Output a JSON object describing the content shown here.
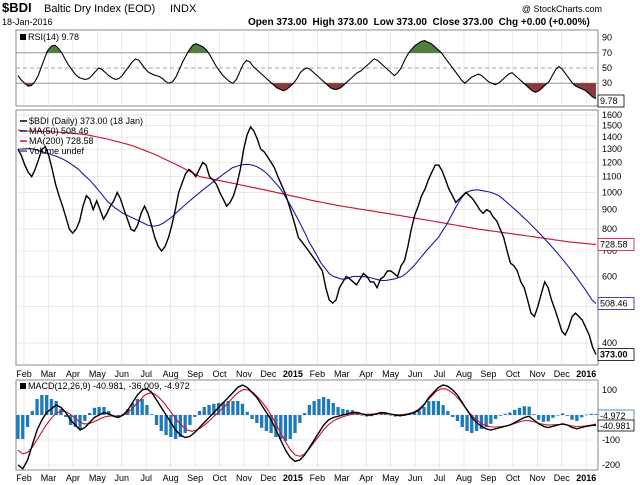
{
  "header": {
    "symbol": "$BDI",
    "name": "Baltic Dry Index (EOD)",
    "exchange": "INDX",
    "date": "18-Jan-2016",
    "ohlc_text": "Open 373.00  High 373.00  Low 373.00  Close 373.00  Chg +0.00 (+0.00%)",
    "watermark": "@ StockCharts.com"
  },
  "chart_data": [
    {
      "type": "line",
      "panel": "rsi",
      "legend": "RSI(14) 9.78",
      "series": [
        {
          "name": "RSI(14)",
          "values": [
            40,
            34,
            30,
            26,
            27,
            32,
            40,
            52,
            64,
            74,
            79,
            80,
            76,
            70,
            62,
            54,
            48,
            42,
            38,
            36,
            35,
            36,
            40,
            45,
            50,
            48,
            44,
            40,
            37,
            35,
            36,
            40,
            46,
            52,
            58,
            62,
            60,
            54,
            48,
            44,
            42,
            40,
            39,
            36,
            32,
            30,
            32,
            38,
            48,
            58,
            66,
            74,
            80,
            82,
            80,
            78,
            74,
            68,
            60,
            52,
            46,
            40,
            36,
            32,
            30,
            35,
            45,
            55,
            60,
            58,
            52,
            48,
            44,
            40,
            36,
            32,
            28,
            24,
            22,
            20,
            22,
            26,
            30,
            36,
            44,
            48,
            50,
            48,
            44,
            40,
            36,
            32,
            28,
            24,
            22,
            22,
            24,
            28,
            32,
            36,
            40,
            44,
            46,
            50,
            54,
            58,
            62,
            60,
            56,
            52,
            48,
            44,
            40,
            44,
            50,
            60,
            68,
            74,
            79,
            82,
            85,
            86,
            84,
            82,
            78,
            74,
            70,
            64,
            58,
            52,
            46,
            40,
            34,
            30,
            34,
            38,
            40,
            42,
            40,
            36,
            32,
            30,
            28,
            30,
            34,
            38,
            42,
            44,
            40,
            36,
            32,
            28,
            24,
            20,
            18,
            20,
            24,
            28,
            32,
            40,
            48,
            52,
            48,
            42,
            36,
            30,
            26,
            24,
            22,
            20,
            16,
            12,
            9.78
          ]
        }
      ],
      "ylim": [
        0,
        100
      ],
      "y_ticks": [
        30,
        50,
        70,
        90
      ],
      "reference_lines": [
        30,
        50,
        70
      ],
      "last_value": "9.78"
    },
    {
      "type": "line",
      "panel": "price",
      "legend": [
        {
          "text": "$BDI (Daily) 373.00 (18 Jan)",
          "color": "#000000"
        },
        {
          "text": "MA(50) 508.46",
          "color": "#1a1aa0"
        },
        {
          "text": "MA(200) 728.58",
          "color": "#c8102e"
        },
        {
          "text": "Volume undef",
          "color": "#555555"
        }
      ],
      "y_scale": "log",
      "ylim": [
        350,
        1650
      ],
      "y_ticks": [
        400,
        500,
        600,
        700,
        800,
        900,
        1000,
        1100,
        1200,
        1300,
        1400,
        1500,
        1600
      ],
      "series": [
        {
          "name": "$BDI",
          "values": [
            1300,
            1250,
            1180,
            1130,
            1100,
            1150,
            1220,
            1300,
            1320,
            1250,
            1150,
            1050,
            980,
            920,
            860,
            800,
            780,
            800,
            840,
            920,
            980,
            960,
            900,
            950,
            900,
            850,
            880,
            920,
            950,
            1000,
            960,
            900,
            850,
            800,
            790,
            820,
            880,
            920,
            880,
            820,
            760,
            720,
            700,
            720,
            760,
            820,
            900,
            1000,
            1060,
            1120,
            1150,
            1130,
            1100,
            1150,
            1200,
            1180,
            1100,
            1080,
            1050,
            1000,
            960,
            920,
            940,
            980,
            1050,
            1150,
            1300,
            1420,
            1490,
            1450,
            1380,
            1300,
            1280,
            1240,
            1200,
            1160,
            1100,
            1050,
            1000,
            940,
            880,
            820,
            760,
            740,
            720,
            700,
            680,
            660,
            640,
            620,
            560,
            520,
            510,
            520,
            560,
            580,
            600,
            590,
            580,
            570,
            590,
            610,
            600,
            580,
            580,
            560,
            590,
            600,
            620,
            620,
            610,
            600,
            640,
            660,
            720,
            800,
            870,
            920,
            980,
            1020,
            1080,
            1130,
            1180,
            1180,
            1140,
            1080,
            1020,
            980,
            940,
            960,
            980,
            1000,
            980,
            960,
            930,
            900,
            880,
            900,
            890,
            860,
            840,
            800,
            760,
            700,
            650,
            640,
            620,
            580,
            560,
            520,
            480,
            470,
            500,
            540,
            580,
            560,
            520,
            490,
            460,
            430,
            420,
            440,
            470,
            480,
            470,
            460,
            440,
            420,
            390,
            373
          ]
        },
        {
          "name": "MA(50)",
          "values": [
            1300,
            1302,
            1304,
            1305,
            1300,
            1290,
            1280,
            1270,
            1262,
            1250,
            1240,
            1225,
            1210,
            1190,
            1170,
            1150,
            1120,
            1095,
            1070,
            1040,
            1010,
            980,
            950,
            930,
            910,
            895,
            880,
            870,
            860,
            850,
            840,
            830,
            820,
            815,
            815,
            820,
            830,
            845,
            860,
            880,
            900,
            920,
            940,
            960,
            980,
            1000,
            1020,
            1040,
            1060,
            1080,
            1100,
            1120,
            1140,
            1160,
            1170,
            1180,
            1185,
            1185,
            1180,
            1170,
            1155,
            1135,
            1110,
            1080,
            1050,
            1020,
            980,
            940,
            900,
            860,
            820,
            780,
            740,
            710,
            680,
            650,
            630,
            610,
            600,
            595,
            590,
            590,
            595,
            600,
            600,
            600,
            598,
            596,
            592,
            588,
            585,
            585,
            588,
            590,
            595,
            600,
            610,
            625,
            640,
            660,
            680,
            700,
            720,
            740,
            760,
            790,
            820,
            860,
            900,
            940,
            975,
            1000,
            1010,
            1015,
            1015,
            1010,
            1005,
            1000,
            990,
            980,
            960,
            940,
            920,
            900,
            880,
            860,
            840,
            820,
            800,
            780,
            760,
            740,
            720,
            700,
            680,
            660,
            640,
            620,
            600,
            580,
            560,
            540,
            520,
            508.46
          ]
        },
        {
          "name": "MA(200)",
          "values": [
            1460,
            1455,
            1452,
            1450,
            1450,
            1450,
            1448,
            1446,
            1444,
            1442,
            1440,
            1436,
            1432,
            1428,
            1424,
            1420,
            1412,
            1404,
            1396,
            1388,
            1380,
            1370,
            1360,
            1350,
            1340,
            1330,
            1316,
            1302,
            1288,
            1274,
            1260,
            1244,
            1228,
            1212,
            1196,
            1180,
            1164,
            1148,
            1132,
            1116,
            1100,
            1094,
            1088,
            1082,
            1076,
            1070,
            1064,
            1058,
            1052,
            1046,
            1040,
            1034,
            1028,
            1022,
            1016,
            1010,
            1004,
            998,
            992,
            986,
            980,
            974,
            968,
            962,
            956,
            950,
            945,
            940,
            935,
            930,
            925,
            920,
            916,
            912,
            908,
            904,
            900,
            896,
            892,
            888,
            884,
            880,
            876,
            872,
            868,
            864,
            860,
            856,
            852,
            848,
            844,
            840,
            836,
            832,
            828,
            824,
            820,
            816,
            812,
            808,
            804,
            800,
            797,
            794,
            791,
            788,
            785,
            782,
            779,
            776,
            773,
            770,
            767,
            764,
            761,
            758,
            755,
            752,
            749,
            746,
            743,
            740,
            738,
            736,
            734,
            732,
            730,
            728.58
          ]
        }
      ],
      "last_value_labels": [
        {
          "text": "728.58",
          "color": "#c8102e"
        },
        {
          "text": "508.46",
          "color": "#1a1aa0"
        },
        {
          "text": "373.00",
          "color": "#000000"
        }
      ]
    },
    {
      "type": "line",
      "panel": "macd",
      "legend": [
        {
          "text": "MACD(12,26,9) -40.981, -36.009, -4.972",
          "colors": [
            "#000000",
            "#c8102e",
            "#1e7ab8"
          ]
        }
      ],
      "ylim": [
        -220,
        140
      ],
      "y_ticks": [
        -200,
        -100,
        0,
        100
      ],
      "series": [
        {
          "name": "MACD",
          "values": [
            -200,
            -215,
            -180,
            -120,
            -60,
            -20,
            10,
            25,
            40,
            30,
            10,
            -20,
            -40,
            -60,
            -50,
            -30,
            -10,
            0,
            10,
            5,
            -5,
            -10,
            0,
            20,
            50,
            80,
            100,
            105,
            90,
            60,
            30,
            0,
            -30,
            -60,
            -80,
            -90,
            -85,
            -70,
            -50,
            -30,
            -10,
            10,
            30,
            50,
            70,
            90,
            110,
            120,
            110,
            90,
            70,
            40,
            10,
            -20,
            -60,
            -100,
            -140,
            -170,
            -185,
            -180,
            -160,
            -130,
            -100,
            -70,
            -40,
            -20,
            -10,
            -5,
            0,
            5,
            10,
            10,
            5,
            0,
            0,
            5,
            10,
            8,
            4,
            0,
            -2,
            0,
            5,
            10,
            20,
            40,
            70,
            90,
            110,
            120,
            115,
            100,
            80,
            50,
            20,
            -10,
            -30,
            -45,
            -55,
            -60,
            -55,
            -50,
            -45,
            -40,
            -30,
            -20,
            -10,
            -5,
            -20,
            -35,
            -45,
            -50,
            -45,
            -40,
            -35,
            -40,
            -50,
            -55,
            -50,
            -45,
            -42,
            -40.981
          ]
        },
        {
          "name": "Signal",
          "values": [
            -140,
            -155,
            -150,
            -130,
            -100,
            -70,
            -40,
            -15,
            5,
            15,
            15,
            5,
            -10,
            -25,
            -35,
            -35,
            -28,
            -20,
            -10,
            -5,
            -3,
            -5,
            -3,
            5,
            20,
            40,
            60,
            80,
            88,
            85,
            70,
            50,
            25,
            0,
            -25,
            -45,
            -60,
            -65,
            -60,
            -50,
            -35,
            -18,
            0,
            18,
            35,
            55,
            75,
            92,
            102,
            100,
            90,
            72,
            50,
            25,
            -5,
            -40,
            -75,
            -110,
            -140,
            -160,
            -165,
            -155,
            -135,
            -110,
            -85,
            -60,
            -40,
            -25,
            -15,
            -8,
            -2,
            3,
            5,
            4,
            3,
            3,
            5,
            6,
            5,
            4,
            2,
            1,
            2,
            5,
            10,
            20,
            35,
            55,
            75,
            95,
            105,
            105,
            95,
            80,
            60,
            35,
            10,
            -10,
            -25,
            -38,
            -45,
            -48,
            -48,
            -46,
            -43,
            -38,
            -32,
            -26,
            -22,
            -23,
            -28,
            -34,
            -38,
            -40,
            -39,
            -38,
            -38,
            -40,
            -44,
            -46,
            -45,
            -43,
            -40,
            -36.009
          ]
        }
      ],
      "histogram_from": "MACD minus Signal",
      "last_value_labels": [
        {
          "text": "-4.972",
          "color": "#1e7ab8"
        },
        {
          "text": "-40.981",
          "color": "#000000"
        }
      ]
    }
  ],
  "x_axis": {
    "labels": [
      {
        "text": "Feb",
        "bold": false
      },
      {
        "text": "Mar",
        "bold": false
      },
      {
        "text": "Apr",
        "bold": false
      },
      {
        "text": "May",
        "bold": false
      },
      {
        "text": "Jun",
        "bold": false
      },
      {
        "text": "Jul",
        "bold": false
      },
      {
        "text": "Aug",
        "bold": false
      },
      {
        "text": "Sep",
        "bold": false
      },
      {
        "text": "Oct",
        "bold": false
      },
      {
        "text": "Nov",
        "bold": false
      },
      {
        "text": "Dec",
        "bold": false
      },
      {
        "text": "2015",
        "bold": true
      },
      {
        "text": "Feb",
        "bold": false
      },
      {
        "text": "Mar",
        "bold": false
      },
      {
        "text": "Apr",
        "bold": false
      },
      {
        "text": "May",
        "bold": false
      },
      {
        "text": "Jun",
        "bold": false
      },
      {
        "text": "Jul",
        "bold": false
      },
      {
        "text": "Aug",
        "bold": false
      },
      {
        "text": "Sep",
        "bold": false
      },
      {
        "text": "Oct",
        "bold": false
      },
      {
        "text": "Nov",
        "bold": false
      },
      {
        "text": "Dec",
        "bold": false
      },
      {
        "text": "2016",
        "bold": true
      }
    ]
  },
  "colors": {
    "price": "#000000",
    "ma50": "#1a1aa0",
    "ma200": "#c8102e",
    "rsi_line": "#000000",
    "rsi_overbought_fill": "#4f7f3a",
    "rsi_oversold_fill": "#8a3a3a",
    "macd_line": "#000000",
    "macd_signal": "#c8102e",
    "macd_histogram": "#1e7ab8",
    "grid": "#dddddd",
    "panel_border": "#888888"
  }
}
